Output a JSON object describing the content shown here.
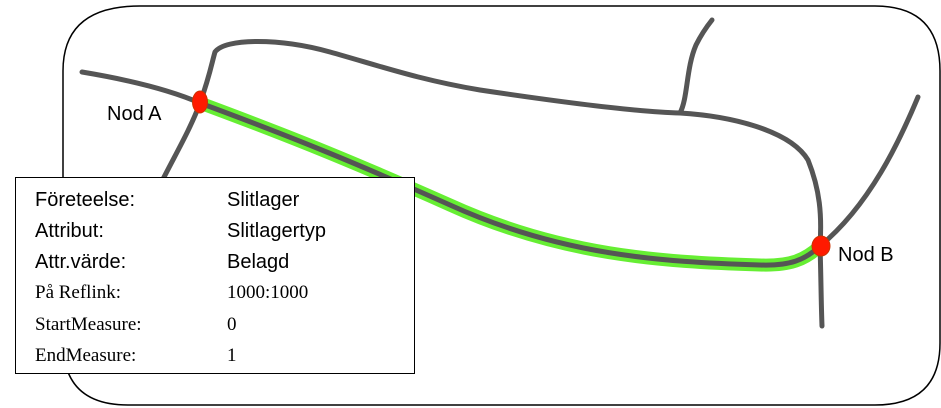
{
  "colors": {
    "road": "#555555",
    "highlight": "#66ee33",
    "node": "#ff1a00",
    "node_outline": "#cc3300",
    "frame": "#000000"
  },
  "nodes": {
    "a": {
      "label": "Nod A"
    },
    "b": {
      "label": "Nod B"
    }
  },
  "info": {
    "rows": [
      {
        "key": "Företeelse:",
        "value": "Slitlager"
      },
      {
        "key": "Attribut:",
        "value": "Slitlagertyp"
      },
      {
        "key": "Attr.värde:",
        "value": "Belagd"
      },
      {
        "key": "På Reflink:",
        "value": "1000:1000"
      },
      {
        "key": "StartMeasure:",
        "value": "0"
      },
      {
        "key": "EndMeasure:",
        "value": "1"
      }
    ]
  }
}
